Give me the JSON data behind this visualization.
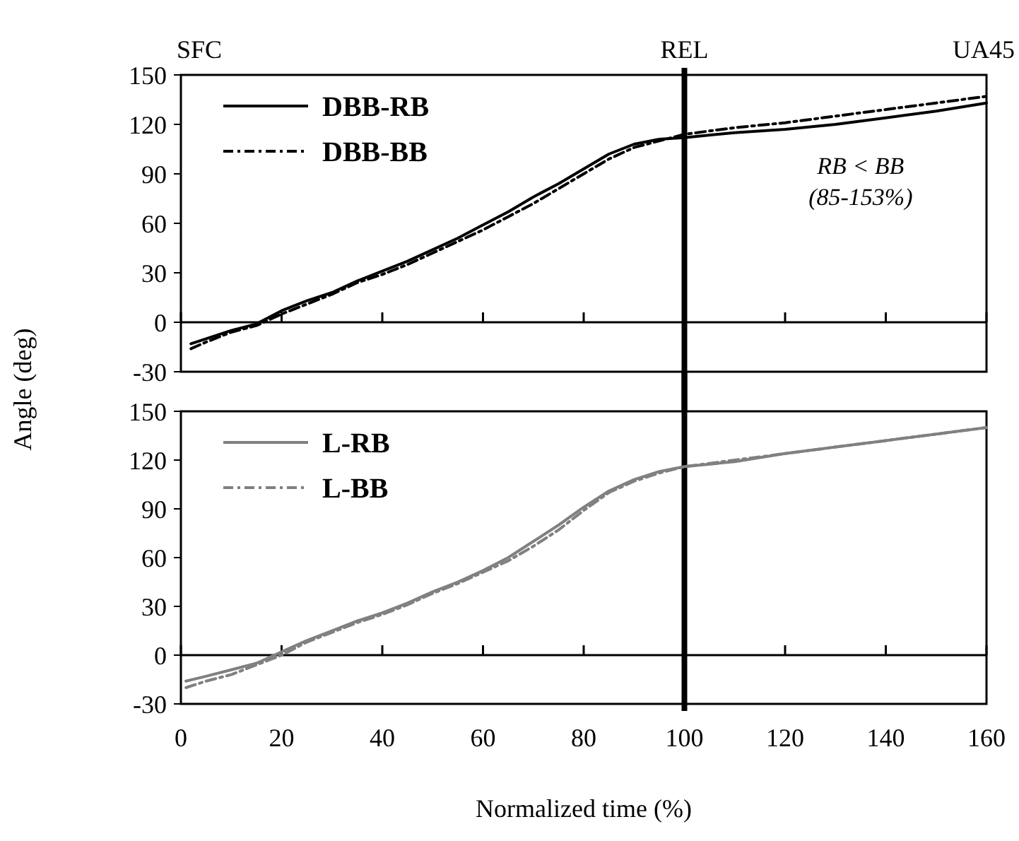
{
  "chart_data": [
    {
      "type": "line",
      "xlim": [
        0,
        160
      ],
      "xticks": [
        0,
        20,
        40,
        60,
        80,
        100,
        120,
        140,
        160
      ],
      "ylim": [
        -30,
        150
      ],
      "yticks": [
        -30,
        0,
        30,
        60,
        90,
        120,
        150
      ],
      "tick_labels": "y",
      "ylabel": "Angle (deg)",
      "legend": "top left",
      "grid": false,
      "ref_lines": [
        {
          "axis": "x",
          "value": 100,
          "color": "#000000"
        }
      ],
      "annotations": [
        "SFC",
        "REL",
        "UA45",
        "RB < BB",
        "(85-153%)"
      ],
      "x": [
        2,
        5,
        10,
        15,
        20,
        25,
        30,
        35,
        40,
        45,
        50,
        55,
        60,
        65,
        70,
        75,
        80,
        85,
        90,
        95,
        100,
        110,
        120,
        130,
        140,
        150,
        160
      ],
      "series": [
        {
          "name": "DBB-RB",
          "color": "#000000",
          "line_style": "solid",
          "values": [
            -13,
            -10,
            -5,
            -1,
            7,
            13,
            18,
            25,
            31,
            37,
            44,
            51,
            59,
            67,
            76,
            84,
            93,
            102,
            108,
            111,
            112,
            115,
            117,
            120,
            124,
            128,
            133
          ]
        },
        {
          "name": "DBB-BB",
          "color": "#000000",
          "line_style": "dashed",
          "values": [
            -16,
            -12,
            -6,
            -2,
            5,
            11,
            17,
            24,
            29,
            35,
            42,
            49,
            56,
            64,
            72,
            81,
            90,
            99,
            106,
            110,
            114,
            118,
            121,
            125,
            129,
            133,
            137
          ]
        }
      ]
    },
    {
      "type": "line",
      "xlim": [
        0,
        160
      ],
      "xticks": [
        0,
        20,
        40,
        60,
        80,
        100,
        120,
        140,
        160
      ],
      "ylim": [
        -30,
        150
      ],
      "yticks": [
        -30,
        0,
        30,
        60,
        90,
        120,
        150
      ],
      "xlabel": "Normalized time (%)",
      "legend": "top left",
      "grid": false,
      "ref_lines": [
        {
          "axis": "x",
          "value": 100,
          "color": "#000000"
        }
      ],
      "x": [
        1,
        5,
        10,
        15,
        20,
        25,
        30,
        35,
        40,
        45,
        50,
        55,
        60,
        65,
        70,
        75,
        80,
        85,
        90,
        95,
        100,
        110,
        120,
        130,
        140,
        150,
        160
      ],
      "series": [
        {
          "name": "L-RB",
          "color": "#808080",
          "line_style": "solid",
          "values": [
            -16,
            -13,
            -9,
            -5,
            2,
            9,
            15,
            21,
            26,
            32,
            39,
            45,
            52,
            60,
            70,
            80,
            91,
            101,
            108,
            113,
            116,
            119,
            124,
            128,
            132,
            136,
            140
          ]
        },
        {
          "name": "L-BB",
          "color": "#808080",
          "line_style": "dashed",
          "values": [
            -20,
            -16,
            -12,
            -6,
            0,
            8,
            14,
            20,
            25,
            31,
            38,
            44,
            51,
            58,
            67,
            77,
            89,
            100,
            107,
            112,
            116,
            120,
            124,
            128,
            132,
            136,
            140
          ]
        }
      ]
    }
  ]
}
